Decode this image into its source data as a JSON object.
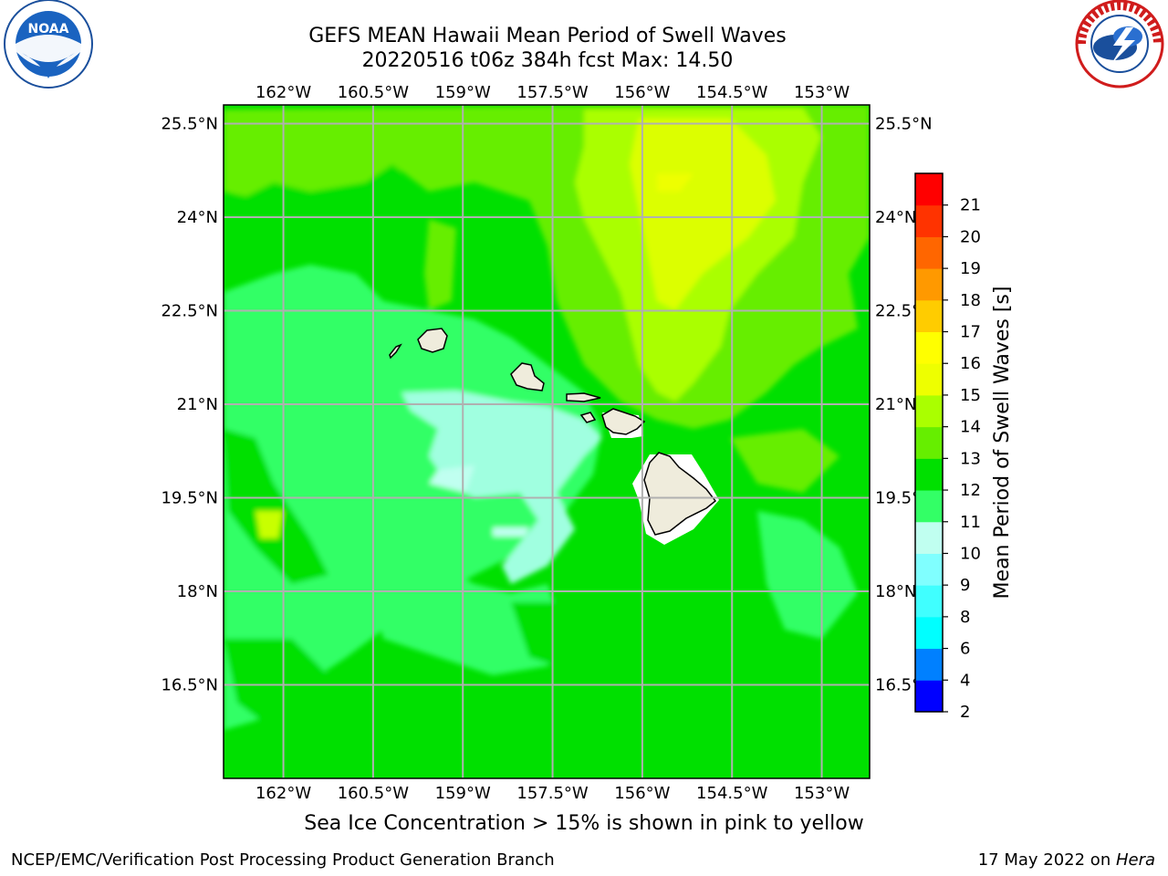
{
  "title_line1": "GEFS MEAN Hawaii Mean Period of Swell Waves",
  "title_line2": "20220516 t06z 384h fcst   Max: 14.50",
  "note": "Sea Ice Concentration > 15% is shown in pink to yellow",
  "footer": {
    "left": "NCEP/EMC/Verification Post Processing Product Generation Branch",
    "right_date": "17 May 2022 on ",
    "right_host": "Hera"
  },
  "logos": {
    "left": {
      "name": "NOAA",
      "icon": "noaa-logo"
    },
    "right": {
      "name": "NATIONAL WEATHER SERVICE",
      "icon": "nws-logo"
    }
  },
  "map": {
    "longitude_ticks": [
      "162°W",
      "160.5°W",
      "159°W",
      "157.5°W",
      "156°W",
      "154.5°W",
      "153°W"
    ],
    "latitude_ticks": [
      "25.5°N",
      "24°N",
      "22.5°N",
      "21°N",
      "19.5°N",
      "18°N",
      "16.5°N"
    ],
    "lon_range": [
      -163,
      -152.2
    ],
    "lat_range": [
      15,
      25.8
    ],
    "grid": true,
    "colors": {
      "land": "#efecdc",
      "coast": "#000000",
      "grid": "#b0b0b0"
    }
  },
  "colorbar": {
    "label": "Mean Period of Swell Waves [s]",
    "levels": [
      2,
      4,
      6,
      8,
      9,
      10,
      11,
      12,
      13,
      14,
      15,
      16,
      17,
      18,
      19,
      20,
      21
    ],
    "colors": [
      "#0000ff",
      "#0080ff",
      "#00ffff",
      "#40ffff",
      "#80ffff",
      "#c0fff0",
      "#33ff66",
      "#00e000",
      "#66ee00",
      "#aaff00",
      "#eeff00",
      "#ffff00",
      "#ffcc00",
      "#ff9900",
      "#ff6600",
      "#ff3300",
      "#ff0000"
    ]
  }
}
